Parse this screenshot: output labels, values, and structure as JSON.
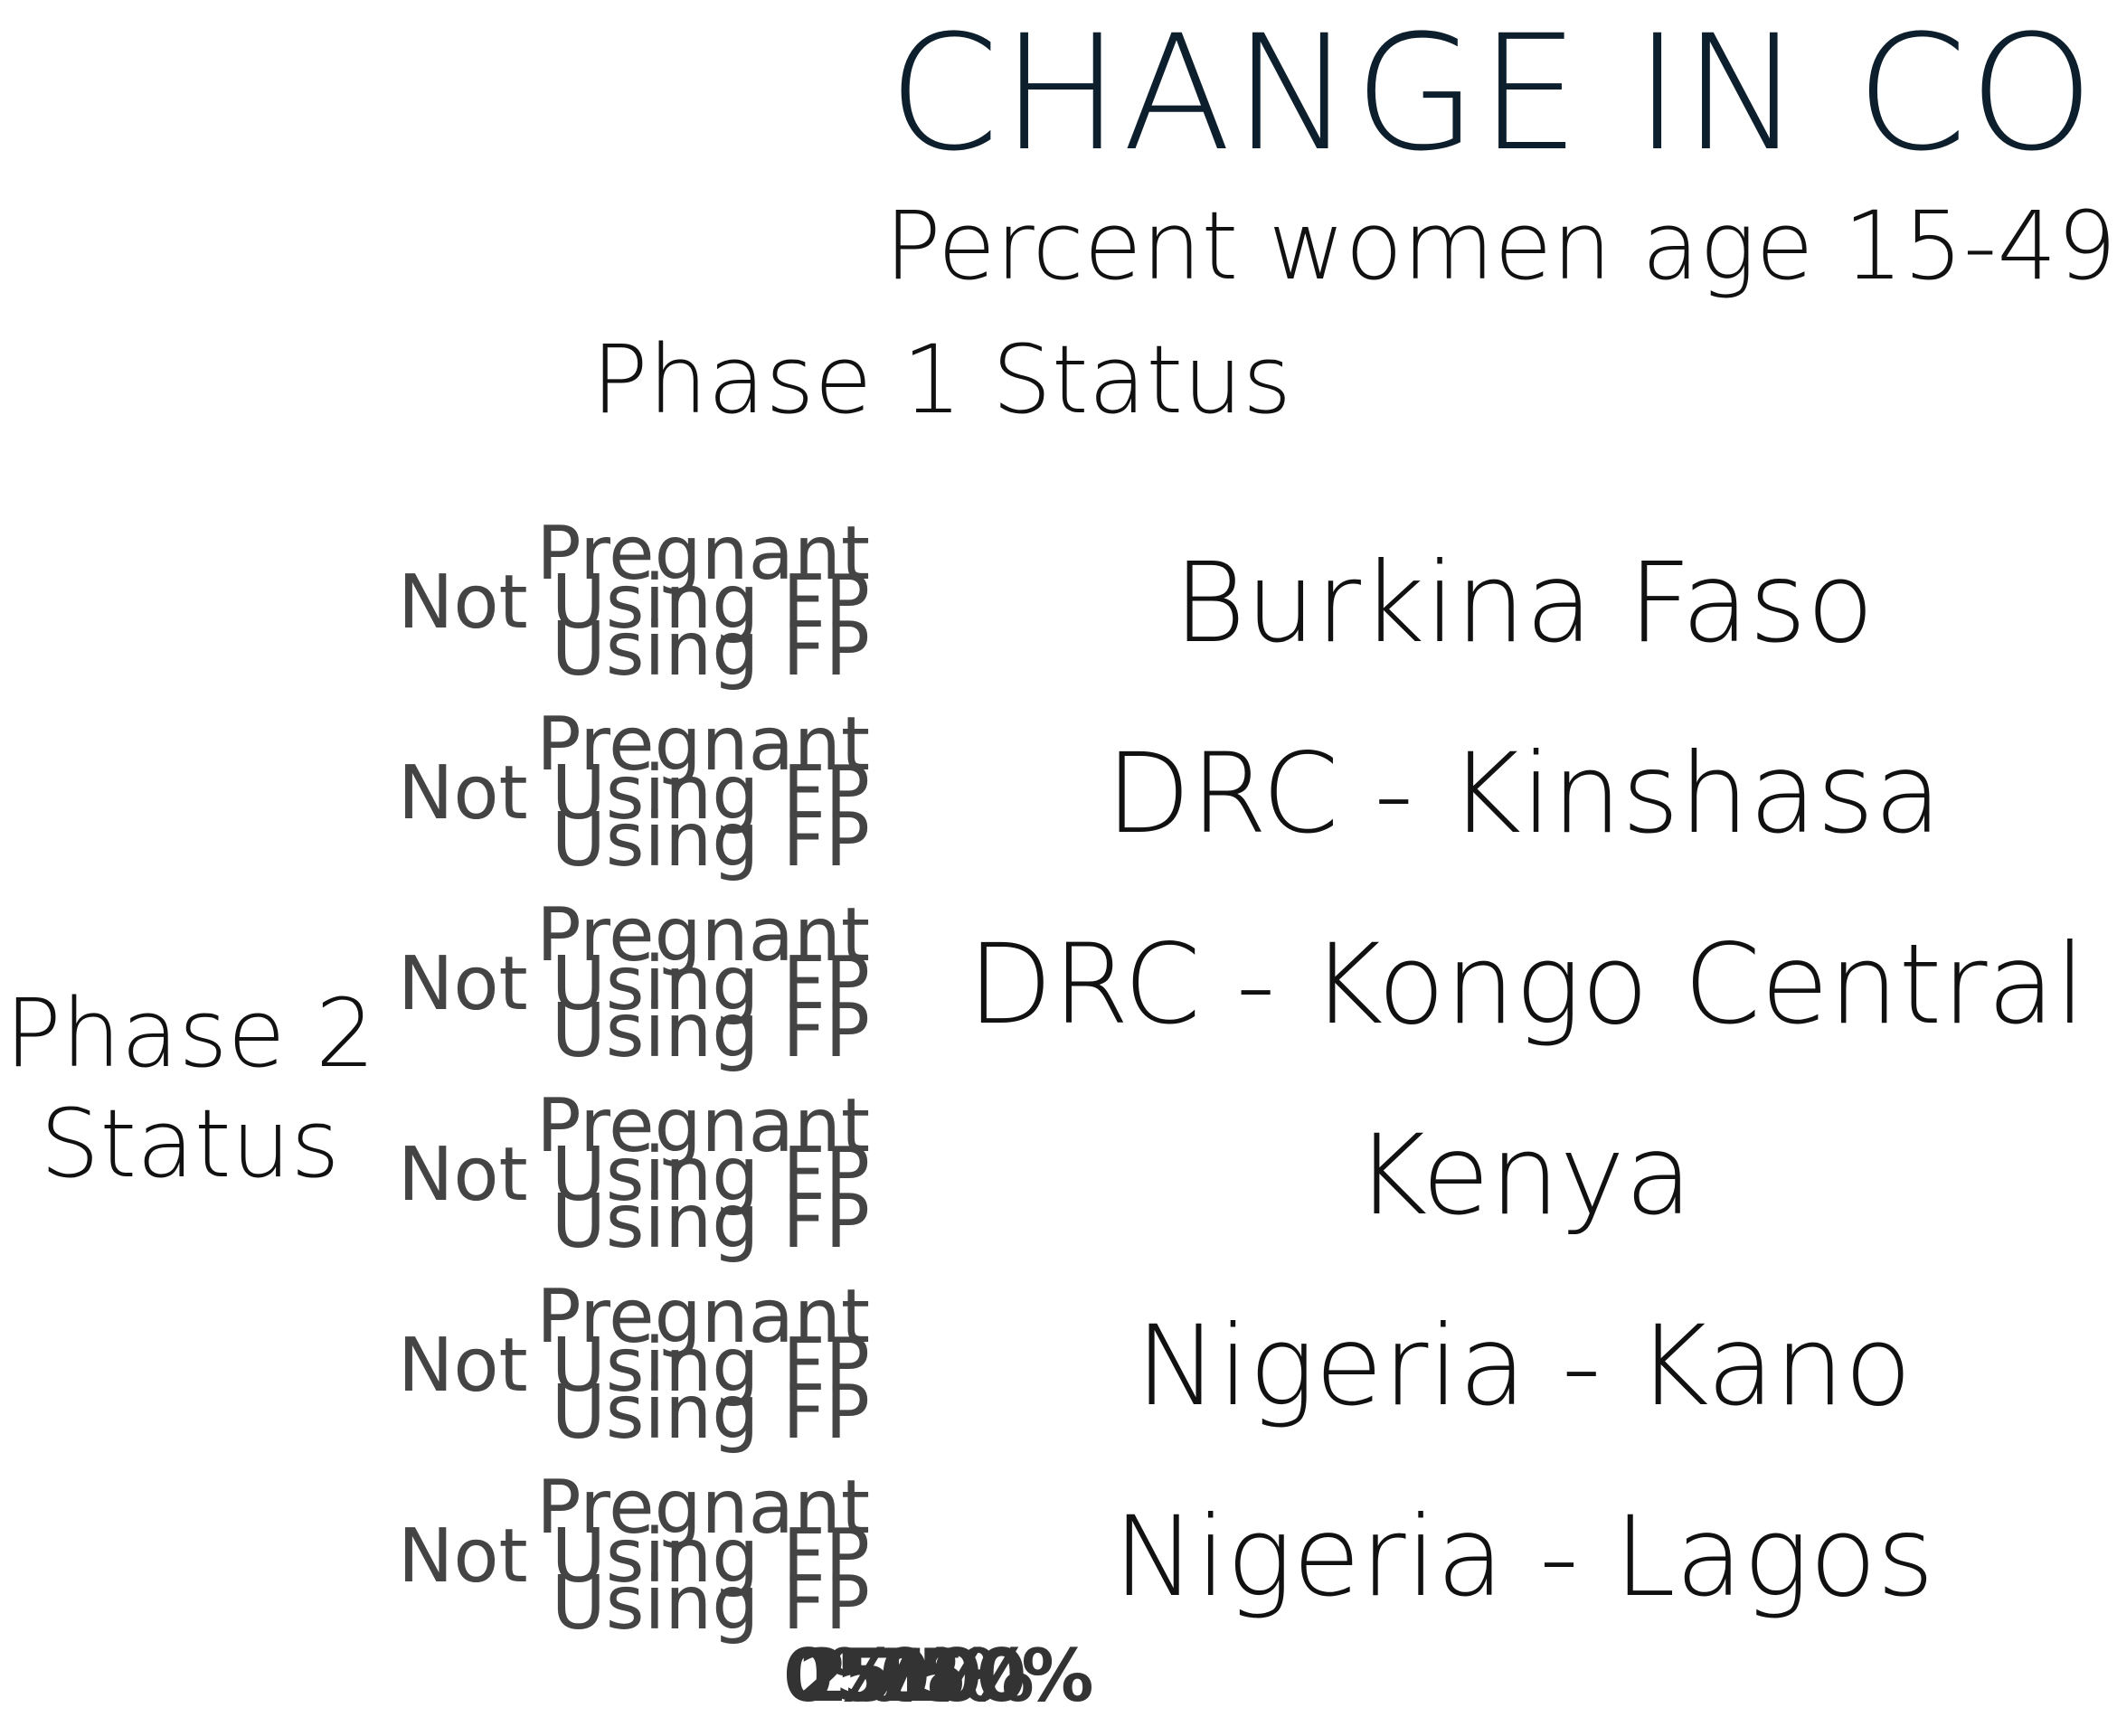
{
  "chart_data": {
    "type": "bar",
    "title": "CHANGE IN CO",
    "subtitle": "Percent women age 15-49",
    "column_header": "Phase 1 Status",
    "row_header": "Phase 2 Status",
    "categories": [
      "Pregnant",
      "Not Using FP",
      "Using FP"
    ],
    "panels": [
      "Burkina Faso",
      "DRC - Kinshasa",
      "DRC - Kongo Central",
      "Kenya",
      "Nigeria - Kano",
      "Nigeria - Lagos"
    ],
    "x_ticks": [
      "0%",
      "25%",
      "50%",
      "75%",
      "100%"
    ],
    "xlim": [
      0,
      100
    ]
  },
  "colors": {
    "title": "#0d1f2d",
    "text": "#111111",
    "category_label": "#444444",
    "tick": "#333333"
  }
}
